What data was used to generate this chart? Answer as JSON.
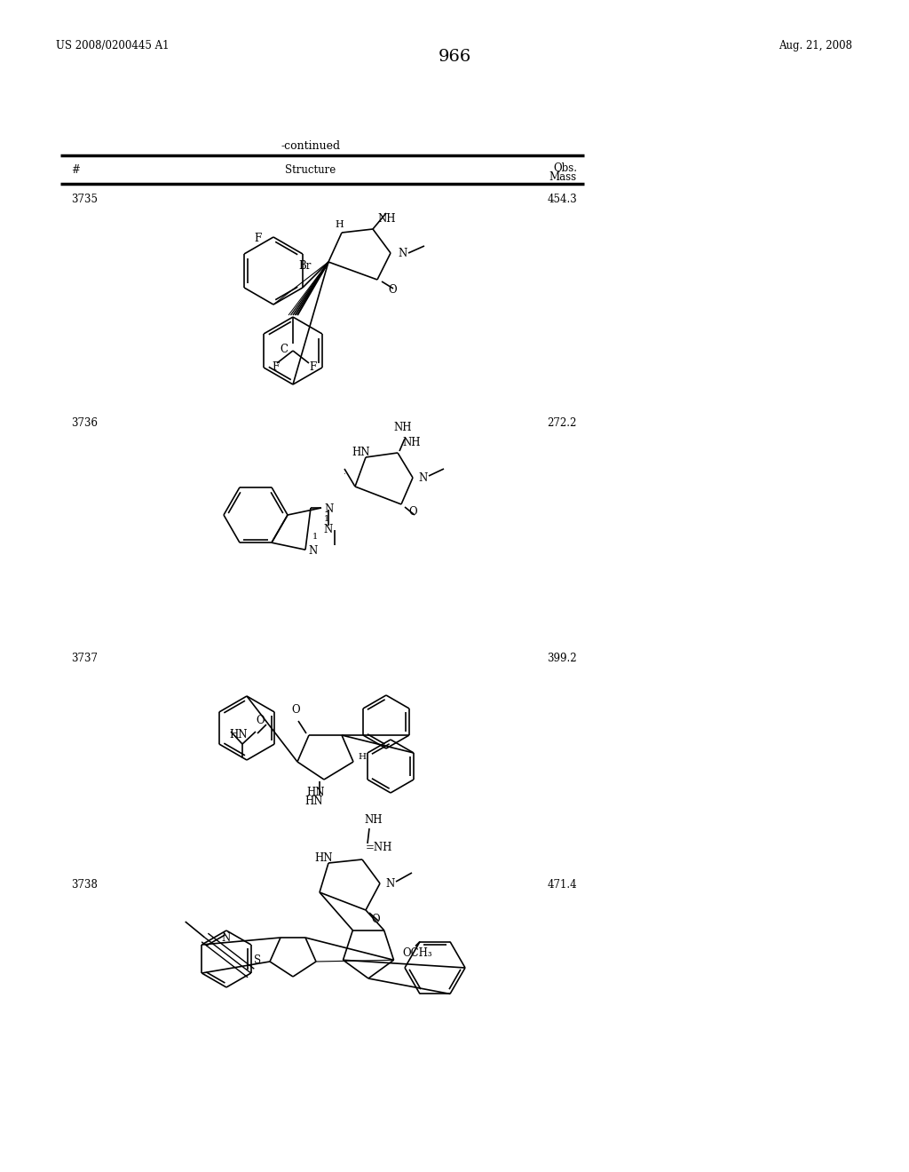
{
  "page_left": "US 2008/0200445 A1",
  "page_right": "Aug. 21, 2008",
  "page_number": "966",
  "table_title": "-continued",
  "col_hash": "#",
  "col_structure": "Structure",
  "col_obs1": "Obs.",
  "col_obs2": "Mass",
  "rows": [
    {
      "num": "3735",
      "mass": "454.3"
    },
    {
      "num": "3736",
      "mass": "272.2"
    },
    {
      "num": "3737",
      "mass": "399.2"
    },
    {
      "num": "3738",
      "mass": "471.4"
    }
  ],
  "bg_color": "#ffffff"
}
